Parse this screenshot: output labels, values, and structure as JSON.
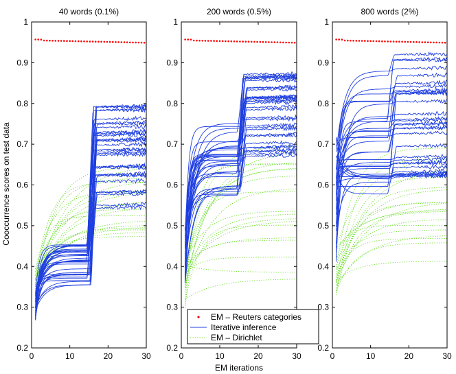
{
  "chart_data": [
    {
      "type": "line",
      "title": "40 words (0.1%)",
      "xlabel": "",
      "ylabel": "Cooccurrence scores on test data",
      "xlim": [
        0,
        30
      ],
      "ylim": [
        0.2,
        1.0
      ],
      "xticks": [
        0,
        10,
        20,
        30
      ],
      "yticks": [
        0.2,
        0.3,
        0.4,
        0.5,
        0.6,
        0.7,
        0.8,
        0.9,
        1.0
      ],
      "yticklabels": [
        "0.2",
        "0.3",
        "0.4",
        "0.5",
        "0.6",
        "0.7",
        "0.8",
        "0.9",
        "1"
      ],
      "grid": false,
      "series": [
        {
          "name": "EM – Reuters categories",
          "style": "red-dots",
          "value_start": 0.955,
          "value_end": 0.949
        },
        {
          "name": "Iterative inference",
          "style": "blue-solid",
          "count": 34,
          "start_range": [
            0.265,
            0.34
          ],
          "plateau_range": [
            0.35,
            0.455
          ],
          "jump_iteration": 15,
          "final_range": [
            0.535,
            0.8
          ]
        },
        {
          "name": "EM – Dirichlet",
          "style": "green-dotted",
          "count": 20,
          "start_range": [
            0.33,
            0.4
          ],
          "final_range": [
            0.41,
            0.7
          ]
        }
      ]
    },
    {
      "type": "line",
      "title": "200 words (0.5%)",
      "xlabel": "EM iterations",
      "ylabel": "",
      "xlim": [
        0,
        30
      ],
      "ylim": [
        0.2,
        1.0
      ],
      "xticks": [
        0,
        10,
        20,
        30
      ],
      "yticks": [
        0.2,
        0.3,
        0.4,
        0.5,
        0.6,
        0.7,
        0.8,
        0.9,
        1.0
      ],
      "yticklabels": [
        "0.2",
        "0.3",
        "0.4",
        "0.5",
        "0.6",
        "0.7",
        "0.8",
        "0.9",
        "1"
      ],
      "grid": false,
      "series": [
        {
          "name": "EM – Reuters categories",
          "style": "red-dots",
          "value_start": 0.955,
          "value_end": 0.949
        },
        {
          "name": "Iterative inference",
          "style": "blue-solid",
          "count": 34,
          "start_range": [
            0.35,
            0.5
          ],
          "plateau_range": [
            0.57,
            0.755
          ],
          "jump_iteration": 15,
          "final_range": [
            0.665,
            0.872
          ]
        },
        {
          "name": "EM – Dirichlet",
          "style": "green-dotted",
          "count": 20,
          "start_range": [
            0.29,
            0.42
          ],
          "final_range": [
            0.35,
            0.74
          ]
        }
      ]
    },
    {
      "type": "line",
      "title": "800 words (2%)",
      "xlabel": "",
      "ylabel": "",
      "xlim": [
        0,
        30
      ],
      "ylim": [
        0.2,
        1.0
      ],
      "xticks": [
        0,
        10,
        20,
        30
      ],
      "yticks": [
        0.2,
        0.3,
        0.4,
        0.5,
        0.6,
        0.7,
        0.8,
        0.9,
        1.0
      ],
      "yticklabels": [
        "0.2",
        "0.3",
        "0.4",
        "0.5",
        "0.6",
        "0.7",
        "0.8",
        "0.9",
        "1"
      ],
      "grid": false,
      "series": [
        {
          "name": "EM – Reuters categories",
          "style": "red-dots",
          "value_start": 0.955,
          "value_end": 0.949
        },
        {
          "name": "Iterative inference",
          "style": "blue-solid",
          "count": 34,
          "start_range": [
            0.4,
            0.75
          ],
          "plateau_range": [
            0.57,
            0.905
          ],
          "jump_iteration": 15,
          "final_range": [
            0.6,
            0.92
          ]
        },
        {
          "name": "EM – Dirichlet",
          "style": "green-dotted",
          "count": 20,
          "start_range": [
            0.32,
            0.45
          ],
          "final_range": [
            0.4,
            0.71
          ]
        }
      ]
    }
  ],
  "legend": {
    "placement": "inside middle panel, bottom-right",
    "entries": [
      "EM – Reuters categories",
      "Iterative inference",
      "EM – Dirichlet"
    ]
  },
  "colors": {
    "reuters": "#ff0000",
    "iterative": "#1f3fe0",
    "dirichlet": "#66dd22",
    "axes": "#000000"
  }
}
